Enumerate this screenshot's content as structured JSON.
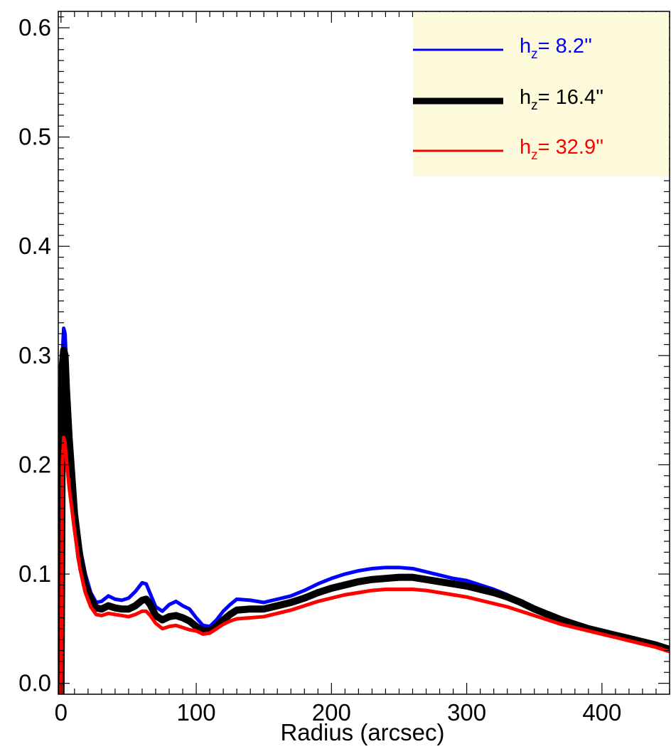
{
  "chart_data": {
    "type": "line",
    "title": "",
    "xlabel": "Radius (arcsec)",
    "ylabel": "",
    "xlim": [
      -2,
      450
    ],
    "ylim": [
      -0.01,
      0.615
    ],
    "xticks": [
      0,
      100,
      200,
      300,
      400
    ],
    "xtick_labels": [
      "0",
      "100",
      "200",
      "300",
      "400"
    ],
    "yticks": [
      0.0,
      0.1,
      0.2,
      0.3,
      0.4,
      0.5,
      0.6
    ],
    "ytick_labels": [
      "0.0",
      "0.1",
      "0.2",
      "0.3",
      "0.4",
      "0.5",
      "0.6"
    ],
    "grid": false,
    "legend": {
      "position": "top-right",
      "background": "#fdfbdb",
      "prefix": "h",
      "subscript": "z",
      "entries": [
        {
          "label": "h_z= 8.2''",
          "value_text": "=   8.2''",
          "color": "#0000ff",
          "line_width": 3
        },
        {
          "label": "h_z= 16.4''",
          "value_text": "=  16.4''",
          "color": "#000000",
          "line_width": 9
        },
        {
          "label": "h_z= 32.9''",
          "value_text": "=  32.9''",
          "color": "#ff0000",
          "line_width": 3
        }
      ]
    },
    "series": [
      {
        "name": "h_z= 8.2''",
        "color": "#0000ff",
        "line_width": 5,
        "x": [
          0,
          0.5,
          1,
          2,
          3,
          4,
          6,
          8,
          10,
          14,
          18,
          22,
          26,
          30,
          35,
          40,
          45,
          50,
          55,
          60,
          63,
          66,
          70,
          75,
          80,
          85,
          90,
          95,
          100,
          105,
          110,
          115,
          120,
          125,
          130,
          140,
          150,
          160,
          170,
          180,
          190,
          200,
          210,
          220,
          230,
          240,
          250,
          260,
          270,
          280,
          290,
          300,
          310,
          320,
          330,
          340,
          350,
          360,
          370,
          380,
          390,
          400,
          410,
          420,
          430,
          440,
          450
        ],
        "y": [
          -0.01,
          0.1,
          0.3,
          0.325,
          0.32,
          0.29,
          0.24,
          0.2,
          0.165,
          0.125,
          0.1,
          0.083,
          0.074,
          0.075,
          0.08,
          0.077,
          0.076,
          0.078,
          0.084,
          0.092,
          0.091,
          0.082,
          0.07,
          0.066,
          0.072,
          0.075,
          0.071,
          0.068,
          0.06,
          0.053,
          0.052,
          0.058,
          0.066,
          0.072,
          0.077,
          0.076,
          0.074,
          0.077,
          0.08,
          0.085,
          0.091,
          0.096,
          0.1,
          0.103,
          0.105,
          0.106,
          0.106,
          0.105,
          0.102,
          0.099,
          0.096,
          0.094,
          0.09,
          0.086,
          0.081,
          0.075,
          0.069,
          0.063,
          0.058,
          0.054,
          0.05,
          0.047,
          0.044,
          0.041,
          0.038,
          0.035,
          0.032
        ]
      },
      {
        "name": "h_z= 16.4''",
        "color": "#000000",
        "line_width": 10,
        "x": [
          0,
          0.5,
          1,
          2,
          3,
          4,
          6,
          8,
          10,
          14,
          18,
          22,
          26,
          30,
          35,
          40,
          45,
          50,
          55,
          60,
          63,
          66,
          70,
          75,
          80,
          85,
          90,
          95,
          100,
          105,
          110,
          115,
          120,
          125,
          130,
          140,
          150,
          160,
          170,
          180,
          190,
          200,
          210,
          220,
          230,
          240,
          250,
          260,
          270,
          280,
          290,
          300,
          310,
          320,
          330,
          340,
          350,
          360,
          370,
          380,
          390,
          400,
          410,
          420,
          430,
          440,
          450
        ],
        "y": [
          -0.01,
          0.1,
          0.29,
          0.305,
          0.3,
          0.27,
          0.225,
          0.19,
          0.155,
          0.115,
          0.09,
          0.077,
          0.069,
          0.068,
          0.071,
          0.069,
          0.068,
          0.068,
          0.071,
          0.076,
          0.077,
          0.072,
          0.062,
          0.058,
          0.061,
          0.062,
          0.06,
          0.057,
          0.052,
          0.048,
          0.048,
          0.052,
          0.058,
          0.063,
          0.067,
          0.068,
          0.068,
          0.071,
          0.074,
          0.078,
          0.083,
          0.087,
          0.09,
          0.093,
          0.095,
          0.096,
          0.097,
          0.097,
          0.095,
          0.093,
          0.091,
          0.089,
          0.086,
          0.083,
          0.079,
          0.074,
          0.068,
          0.063,
          0.058,
          0.054,
          0.05,
          0.047,
          0.044,
          0.041,
          0.038,
          0.035,
          0.031
        ]
      },
      {
        "name": "h_z= 32.9''",
        "color": "#ff0000",
        "line_width": 5,
        "x": [
          0,
          0.5,
          1,
          2,
          3,
          4,
          6,
          8,
          10,
          14,
          18,
          22,
          26,
          30,
          35,
          40,
          45,
          50,
          55,
          60,
          63,
          66,
          70,
          75,
          80,
          85,
          90,
          95,
          100,
          105,
          110,
          115,
          120,
          125,
          130,
          140,
          150,
          160,
          170,
          180,
          190,
          200,
          210,
          220,
          230,
          240,
          250,
          260,
          270,
          280,
          290,
          300,
          310,
          320,
          330,
          340,
          350,
          360,
          370,
          380,
          390,
          400,
          410,
          420,
          430,
          440,
          450
        ],
        "y": [
          -0.01,
          0.08,
          0.2,
          0.225,
          0.22,
          0.205,
          0.18,
          0.16,
          0.14,
          0.105,
          0.083,
          0.07,
          0.063,
          0.062,
          0.064,
          0.063,
          0.062,
          0.061,
          0.063,
          0.066,
          0.066,
          0.062,
          0.055,
          0.05,
          0.052,
          0.053,
          0.051,
          0.049,
          0.048,
          0.045,
          0.046,
          0.05,
          0.054,
          0.057,
          0.059,
          0.06,
          0.061,
          0.064,
          0.067,
          0.071,
          0.075,
          0.078,
          0.081,
          0.083,
          0.085,
          0.086,
          0.086,
          0.086,
          0.085,
          0.083,
          0.081,
          0.079,
          0.076,
          0.073,
          0.07,
          0.066,
          0.062,
          0.058,
          0.054,
          0.051,
          0.048,
          0.045,
          0.042,
          0.039,
          0.036,
          0.033,
          0.029
        ]
      }
    ]
  }
}
